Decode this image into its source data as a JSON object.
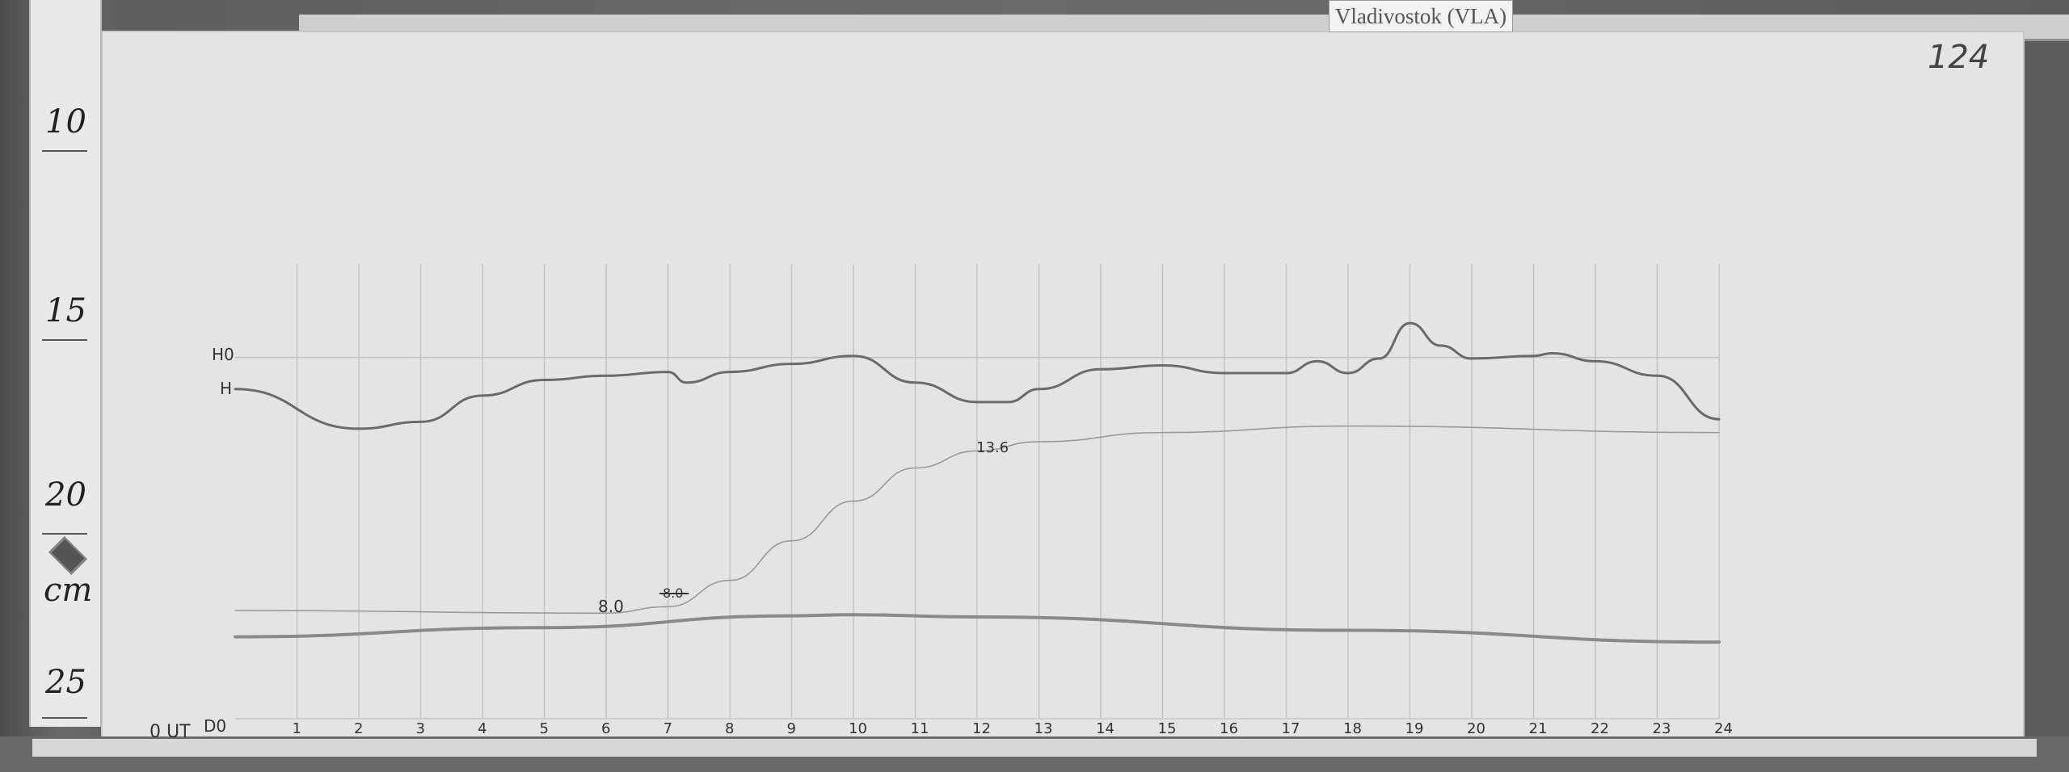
{
  "station_label": "Vladivostok (VLA)",
  "page_number": "124",
  "ruler": {
    "unit": "cm",
    "marks": [
      "10",
      "15",
      "20",
      "25"
    ]
  },
  "chart_data": {
    "type": "line",
    "xlabel": "0 UT",
    "x_ticks": [
      "1",
      "2",
      "3",
      "4",
      "5",
      "6",
      "7",
      "8",
      "9",
      "10",
      "11",
      "12",
      "13",
      "14",
      "15",
      "16",
      "17",
      "18",
      "19",
      "20",
      "21",
      "22",
      "23",
      "24"
    ],
    "xlim": [
      0,
      24
    ],
    "y_units": "cm",
    "ylim": [
      10,
      25
    ],
    "grid": "vertical hourly lines",
    "baseline_labels": {
      "H0": "H0",
      "H": "H",
      "D0": "D0"
    },
    "annotations": [
      {
        "text": "8.0",
        "x": 6
      },
      {
        "text": "13.6",
        "x": 11.5
      },
      {
        "text": "8.0 (struck out)",
        "x": 7
      }
    ],
    "series": [
      {
        "name": "H",
        "x": [
          0,
          2,
          3,
          4,
          5,
          6,
          7,
          7.3,
          8,
          9,
          10,
          11,
          12,
          12.5,
          13,
          14,
          15,
          16,
          17,
          17.5,
          18,
          18.5,
          19,
          19.5,
          20,
          21,
          21.3,
          22,
          23,
          24
        ],
        "y": [
          16.23,
          17.27,
          17.09,
          16.4,
          15.99,
          15.88,
          15.78,
          16.06,
          15.78,
          15.57,
          15.36,
          16.06,
          16.57,
          16.57,
          16.23,
          15.71,
          15.61,
          15.81,
          15.81,
          15.5,
          15.81,
          15.43,
          14.5,
          15.09,
          15.43,
          15.36,
          15.29,
          15.5,
          15.88,
          17.02
        ]
      },
      {
        "name": "",
        "x": [
          0,
          6,
          7,
          8,
          9,
          10,
          11,
          12,
          13,
          15,
          18,
          24
        ],
        "y": [
          22.04,
          22.11,
          21.94,
          21.25,
          20.21,
          19.17,
          18.3,
          17.85,
          17.61,
          17.37,
          17.2,
          17.37
        ]
      },
      {
        "name": "",
        "x": [
          0,
          5,
          9,
          10,
          12,
          18,
          24
        ],
        "y": [
          22.73,
          22.49,
          22.18,
          22.15,
          22.21,
          22.56,
          22.87
        ]
      }
    ],
    "baselines_cm": {
      "H0": 15.4,
      "bottom": 24.88
    }
  }
}
